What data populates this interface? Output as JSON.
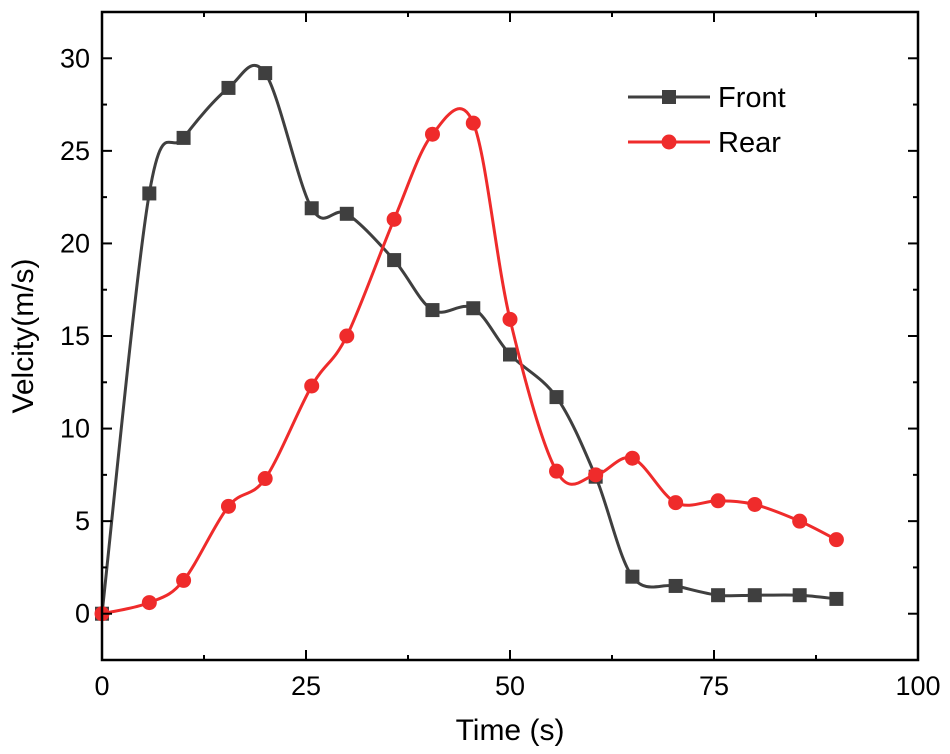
{
  "chart_data": {
    "type": "line",
    "title": "",
    "xlabel": "Time (s)",
    "ylabel": "Velcity(m/s)",
    "xlim": [
      0,
      100
    ],
    "ylim": [
      -2.5,
      32.5
    ],
    "xticks": [
      0,
      25,
      50,
      75,
      100
    ],
    "xtick_labels": [
      "0",
      "25",
      "50",
      "75",
      "100"
    ],
    "yticks": [
      0,
      5,
      10,
      15,
      20,
      25,
      30
    ],
    "ytick_labels": [
      "0",
      "5",
      "10",
      "15",
      "20",
      "25",
      "30"
    ],
    "grid": false,
    "legend_position": "top-right",
    "series": [
      {
        "name": "Front",
        "color": "#3f3f3f",
        "marker": "square",
        "x": [
          0,
          5.8,
          10,
          15.5,
          20,
          25.7,
          30,
          35.8,
          40.5,
          45.5,
          50,
          55.7,
          60.5,
          65,
          70.3,
          75.5,
          80,
          85.5,
          90
        ],
        "y": [
          0,
          22.7,
          25.7,
          28.4,
          29.2,
          21.9,
          21.6,
          19.1,
          16.4,
          16.5,
          14,
          11.7,
          7.4,
          2.0,
          1.5,
          1.0,
          1.0,
          1.0,
          0.8
        ]
      },
      {
        "name": "Rear",
        "color": "#ef2b2b",
        "marker": "circle",
        "x": [
          0,
          5.8,
          10,
          15.5,
          20,
          25.7,
          30,
          35.8,
          40.5,
          45.5,
          50,
          55.7,
          60.5,
          65,
          70.3,
          75.5,
          80,
          85.5,
          90
        ],
        "y": [
          0,
          0.6,
          1.8,
          5.8,
          7.3,
          12.3,
          15.0,
          21.3,
          25.9,
          26.5,
          15.9,
          7.7,
          7.5,
          8.4,
          6.0,
          6.1,
          5.9,
          5.0,
          4.0
        ]
      }
    ]
  }
}
